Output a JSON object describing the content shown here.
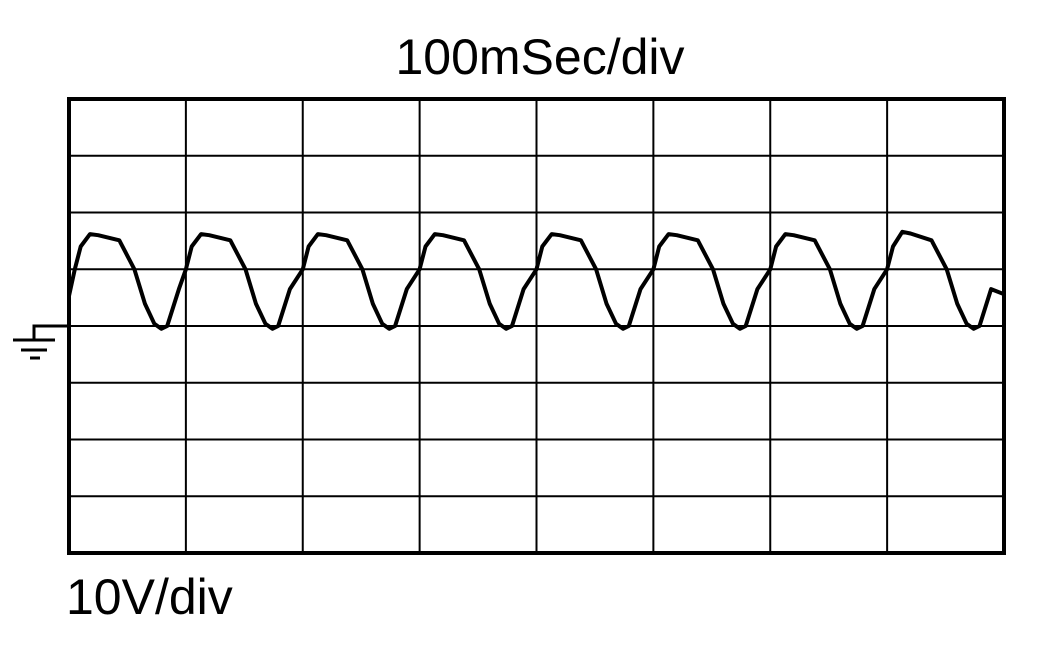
{
  "chart_data": {
    "type": "line",
    "title": "100mSec/div",
    "xlabel": "",
    "ylabel": "10V/div",
    "xlim": [
      0,
      800
    ],
    "ylim": [
      -40,
      40
    ],
    "x_divisions": 8,
    "y_divisions": 8,
    "x_units": "ms",
    "y_units": "V",
    "grid": true,
    "ground_marker_level": 0,
    "line_color": "#000000",
    "series": [
      {
        "x": [
          0,
          5,
          10,
          18,
          25,
          43,
          56,
          65,
          73,
          79,
          84,
          94,
          100,
          105,
          113,
          120,
          138,
          151,
          160,
          168,
          174,
          179,
          189,
          200,
          205,
          213,
          220,
          238,
          251,
          260,
          268,
          274,
          279,
          289,
          300,
          305,
          313,
          320,
          338,
          351,
          360,
          368,
          374,
          379,
          389,
          400,
          405,
          413,
          420,
          438,
          451,
          460,
          468,
          474,
          479,
          489,
          500,
          505,
          513,
          520,
          538,
          551,
          560,
          568,
          574,
          579,
          589,
          600,
          605,
          613,
          620,
          638,
          651,
          660,
          668,
          674,
          679,
          689,
          700,
          705,
          713,
          720,
          738,
          751,
          760,
          768,
          774,
          779,
          789,
          800
        ],
        "y": [
          5.3,
          10,
          14,
          16.2,
          16.0,
          15.1,
          10,
          3.9,
          0.4,
          -0.5,
          0,
          6.5,
          10,
          14,
          16.2,
          16.0,
          15.1,
          10,
          3.9,
          0.4,
          -0.5,
          0,
          6.5,
          10,
          14,
          16.2,
          16.0,
          15.1,
          10,
          3.9,
          0.4,
          -0.5,
          0,
          6.5,
          10,
          14,
          16.2,
          16.0,
          15.1,
          10,
          3.9,
          0.4,
          -0.5,
          0,
          6.5,
          10,
          14,
          16.2,
          16.0,
          15.1,
          10,
          3.9,
          0.4,
          -0.5,
          0,
          6.5,
          10,
          14,
          16.2,
          16.0,
          15.1,
          10,
          3.9,
          0.4,
          -0.5,
          0,
          6.5,
          10,
          14,
          16.2,
          16.0,
          15.1,
          10,
          3.9,
          0.4,
          -0.5,
          0,
          6.5,
          10,
          14,
          16.6,
          16.3,
          15.1,
          10,
          3.9,
          0.4,
          -0.5,
          0,
          6.5,
          5.6
        ]
      }
    ]
  }
}
